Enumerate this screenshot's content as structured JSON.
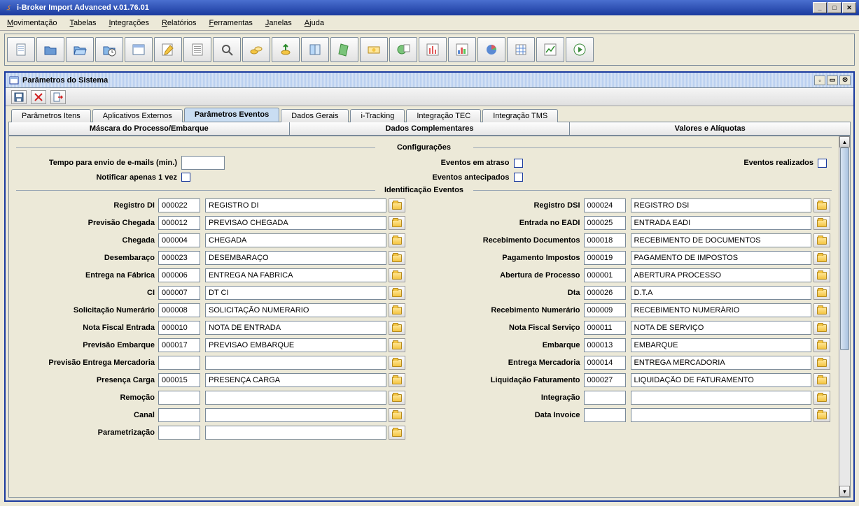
{
  "window": {
    "title": "i-Broker Import Advanced v.01.76.01"
  },
  "menus": [
    "Movimentação",
    "Tabelas",
    "Integrações",
    "Relatórios",
    "Ferramentas",
    "Janelas",
    "Ajuda"
  ],
  "innerWindow": {
    "title": "Parâmetros do Sistema"
  },
  "tabsTop": [
    {
      "label": "Parâmetros Itens",
      "active": false
    },
    {
      "label": "Aplicativos Externos",
      "active": false
    },
    {
      "label": "Parâmetros Eventos",
      "active": true
    },
    {
      "label": "Dados Gerais",
      "active": false
    },
    {
      "label": "i-Tracking",
      "active": false
    },
    {
      "label": "Integração TEC",
      "active": false
    },
    {
      "label": "Integração TMS",
      "active": false
    }
  ],
  "tabsSecond": [
    "Máscara do Processo/Embarque",
    "Dados Complementares",
    "Valores e Alíquotas"
  ],
  "sections": {
    "config": "Configurações",
    "events": "Identificação Eventos"
  },
  "configFields": {
    "emailTimeLabel": "Tempo para envio de e-mails (min.)",
    "emailTimeValue": "",
    "atrasoLabel": "Eventos em atraso",
    "realizadosLabel": "Eventos realizados",
    "notifyOnceLabel": "Notificar apenas 1 vez",
    "antecipadosLabel": "Eventos antecipados"
  },
  "eventsLeft": [
    {
      "label": "Registro DI",
      "code": "000022",
      "desc": "REGISTRO DI"
    },
    {
      "label": "Previsão Chegada",
      "code": "000012",
      "desc": "PREVISAO CHEGADA"
    },
    {
      "label": "Chegada",
      "code": "000004",
      "desc": "CHEGADA"
    },
    {
      "label": "Desembaraço",
      "code": "000023",
      "desc": "DESEMBARAÇO"
    },
    {
      "label": "Entrega na Fábrica",
      "code": "000006",
      "desc": "ENTREGA NA FABRICA"
    },
    {
      "label": "CI",
      "code": "000007",
      "desc": "DT CI"
    },
    {
      "label": "Solicitação Numerário",
      "code": "000008",
      "desc": "SOLICITAÇÃO NUMERARIO"
    },
    {
      "label": "Nota Fiscal Entrada",
      "code": "000010",
      "desc": "NOTA DE ENTRADA"
    },
    {
      "label": "Previsão Embarque",
      "code": "000017",
      "desc": "PREVISAO EMBARQUE"
    },
    {
      "label": "Previsão Entrega Mercadoria",
      "code": "",
      "desc": ""
    },
    {
      "label": "Presença Carga",
      "code": "000015",
      "desc": "PRESENÇA CARGA"
    },
    {
      "label": "Remoção",
      "code": "",
      "desc": ""
    },
    {
      "label": "Canal",
      "code": "",
      "desc": ""
    },
    {
      "label": "Parametrização",
      "code": "",
      "desc": ""
    }
  ],
  "eventsRight": [
    {
      "label": "Registro DSI",
      "code": "000024",
      "desc": "REGISTRO DSI"
    },
    {
      "label": "Entrada no EADI",
      "code": "000025",
      "desc": "ENTRADA EADI"
    },
    {
      "label": "Recebimento Documentos",
      "code": "000018",
      "desc": "RECEBIMENTO DE DOCUMENTOS"
    },
    {
      "label": "Pagamento Impostos",
      "code": "000019",
      "desc": "PAGAMENTO DE IMPOSTOS"
    },
    {
      "label": "Abertura de Processo",
      "code": "000001",
      "desc": "ABERTURA PROCESSO"
    },
    {
      "label": "Dta",
      "code": "000026",
      "desc": "D.T.A"
    },
    {
      "label": "Recebimento Numerário",
      "code": "000009",
      "desc": "RECEBIMENTO NUMERÁRIO"
    },
    {
      "label": "Nota Fiscal Serviço",
      "code": "000011",
      "desc": "NOTA DE SERVIÇO"
    },
    {
      "label": "Embarque",
      "code": "000013",
      "desc": "EMBARQUE"
    },
    {
      "label": "Entrega Mercadoria",
      "code": "000014",
      "desc": "ENTREGA MERCADORIA"
    },
    {
      "label": "Liquidação Faturamento",
      "code": "000027",
      "desc": "LIQUIDAÇÃO DE FATURAMENTO"
    },
    {
      "label": "Integração",
      "code": "",
      "desc": ""
    },
    {
      "label": "Data Invoice",
      "code": "",
      "desc": ""
    }
  ],
  "toolbarIcons": [
    "doc",
    "folder",
    "folder-open",
    "folder-clock",
    "window",
    "edit",
    "list",
    "search",
    "coins",
    "coin-up",
    "book",
    "sheet",
    "money",
    "globe-doc",
    "chart-pie",
    "chart-bar",
    "pie",
    "grid",
    "chart-line",
    "play"
  ],
  "innerToolbarIcons": [
    "save",
    "delete",
    "exit"
  ],
  "colors": {
    "titlebar_start": "#4a6fcf",
    "titlebar_end": "#1a3a9e",
    "panel_bg": "#ece9d8",
    "border": "#7a8a99",
    "tab_active_bg": "#c9ddf2"
  }
}
